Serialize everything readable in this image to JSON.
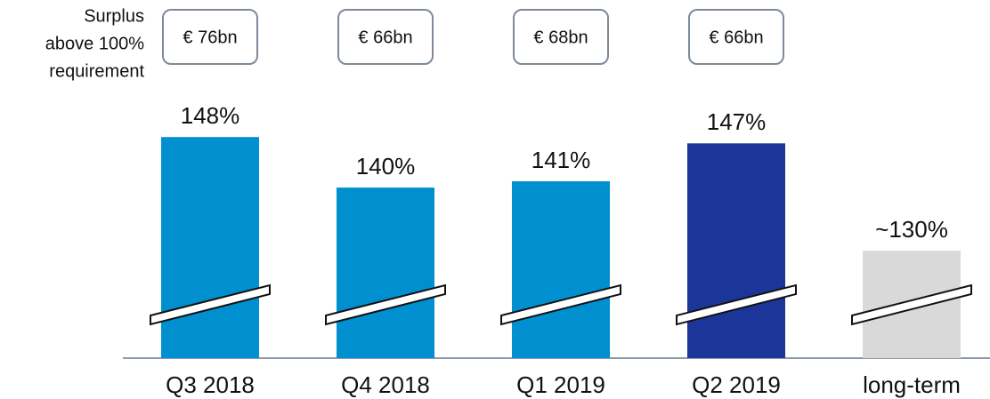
{
  "chart_data": {
    "type": "bar",
    "surplus_label": [
      "Surplus",
      "above 100%",
      "requirement"
    ],
    "surplus": [
      "€ 76bn",
      "€ 66bn",
      "€ 68bn",
      "€ 66bn"
    ],
    "categories": [
      "Q3 2018",
      "Q4 2018",
      "Q1 2019",
      "Q2 2019",
      "long-term"
    ],
    "values": [
      148,
      140,
      141,
      147,
      130
    ],
    "value_labels": [
      "148%",
      "140%",
      "141%",
      "147%",
      "~130%"
    ],
    "colors": [
      "#0090d0",
      "#0090d0",
      "#0090d0",
      "#1b3598",
      "#d9d9d9"
    ],
    "ylim": [
      113,
      150
    ]
  }
}
